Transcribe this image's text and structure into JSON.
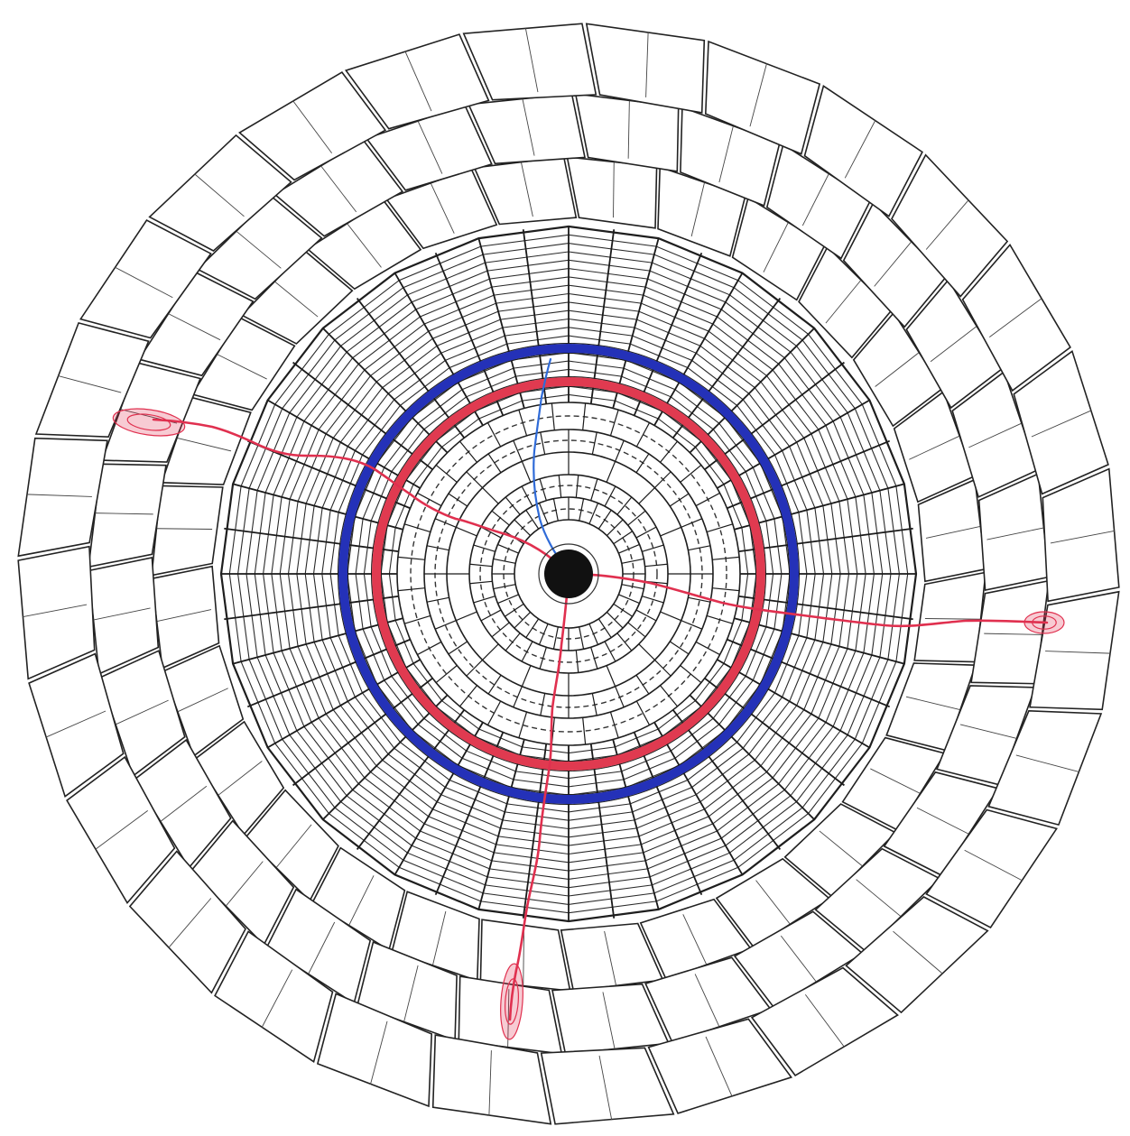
{
  "diagram": {
    "colors": {
      "background": "#ffffff",
      "line": "#222222",
      "inner_band": "#e03a50",
      "outer_band": "#2431b8",
      "track_red": "#e0304f",
      "track_blue": "#2f6bd8",
      "beam_pipe": "#111111"
    },
    "outer_module": {
      "rings": 3,
      "segments": 28
    },
    "middle_module": {
      "spokes": 24,
      "layers": 22
    },
    "inner_tracker": {
      "dashed_rings": 4,
      "solid_rings": 6,
      "spokes": 32
    },
    "bands": [
      {
        "name": "inner-band",
        "color": "#e03a50"
      },
      {
        "name": "outer-band",
        "color": "#2431b8"
      }
    ],
    "tracks": [
      {
        "name": "track-upper-left",
        "color": "#e0304f",
        "blob": true
      },
      {
        "name": "track-right",
        "color": "#e0304f",
        "blob": true
      },
      {
        "name": "track-bottom",
        "color": "#e0304f",
        "blob": true
      },
      {
        "name": "track-blue-up",
        "color": "#2f6bd8",
        "blob": false
      }
    ]
  }
}
